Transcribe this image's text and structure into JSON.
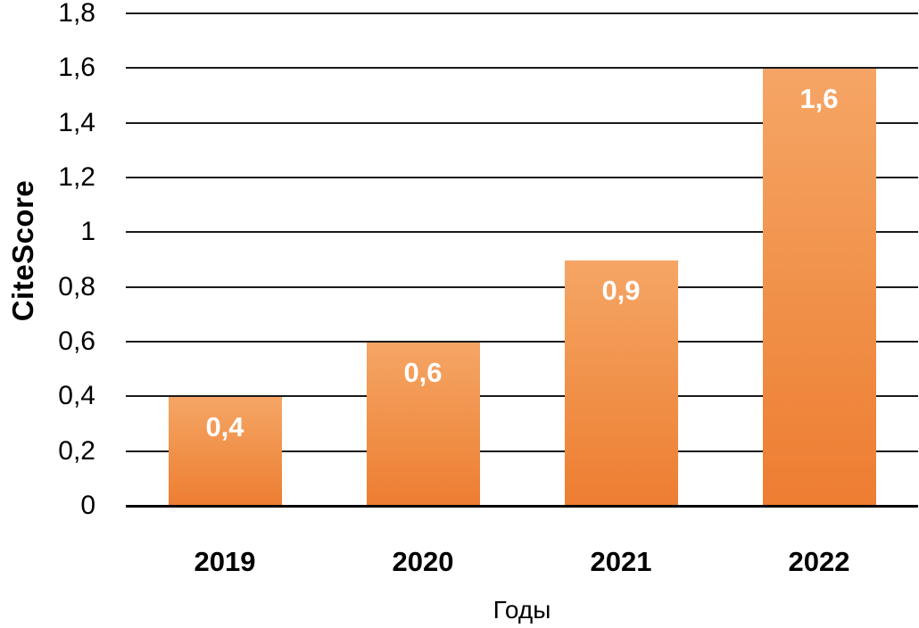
{
  "chart_data": {
    "type": "bar",
    "title": "",
    "categories": [
      "2019",
      "2020",
      "2021",
      "2022"
    ],
    "values": [
      0.4,
      0.6,
      0.9,
      1.6
    ],
    "value_labels": [
      "0,4",
      "0,6",
      "0,9",
      "1,6"
    ],
    "xlabel": "Годы",
    "ylabel": "CiteScore",
    "ylim": [
      0,
      1.8
    ],
    "ytick_step": 0.2,
    "yticks": [
      {
        "value": 0.0,
        "label": "0"
      },
      {
        "value": 0.2,
        "label": "0,2"
      },
      {
        "value": 0.4,
        "label": "0,4"
      },
      {
        "value": 0.6,
        "label": "0,6"
      },
      {
        "value": 0.8,
        "label": "0,8"
      },
      {
        "value": 1.0,
        "label": "1"
      },
      {
        "value": 1.2,
        "label": "1,2"
      },
      {
        "value": 1.4,
        "label": "1,4"
      },
      {
        "value": 1.6,
        "label": "1,6"
      },
      {
        "value": 1.8,
        "label": "1,8"
      }
    ],
    "grid": "horizontal",
    "legend": "none",
    "colors": {
      "bar_top": "#f6a566",
      "bar_bottom": "#ed7d31",
      "bar_value_text": "#ffffff",
      "gridline": "#1a1a1a",
      "axis_line": "#000000",
      "text": "#000000"
    }
  }
}
